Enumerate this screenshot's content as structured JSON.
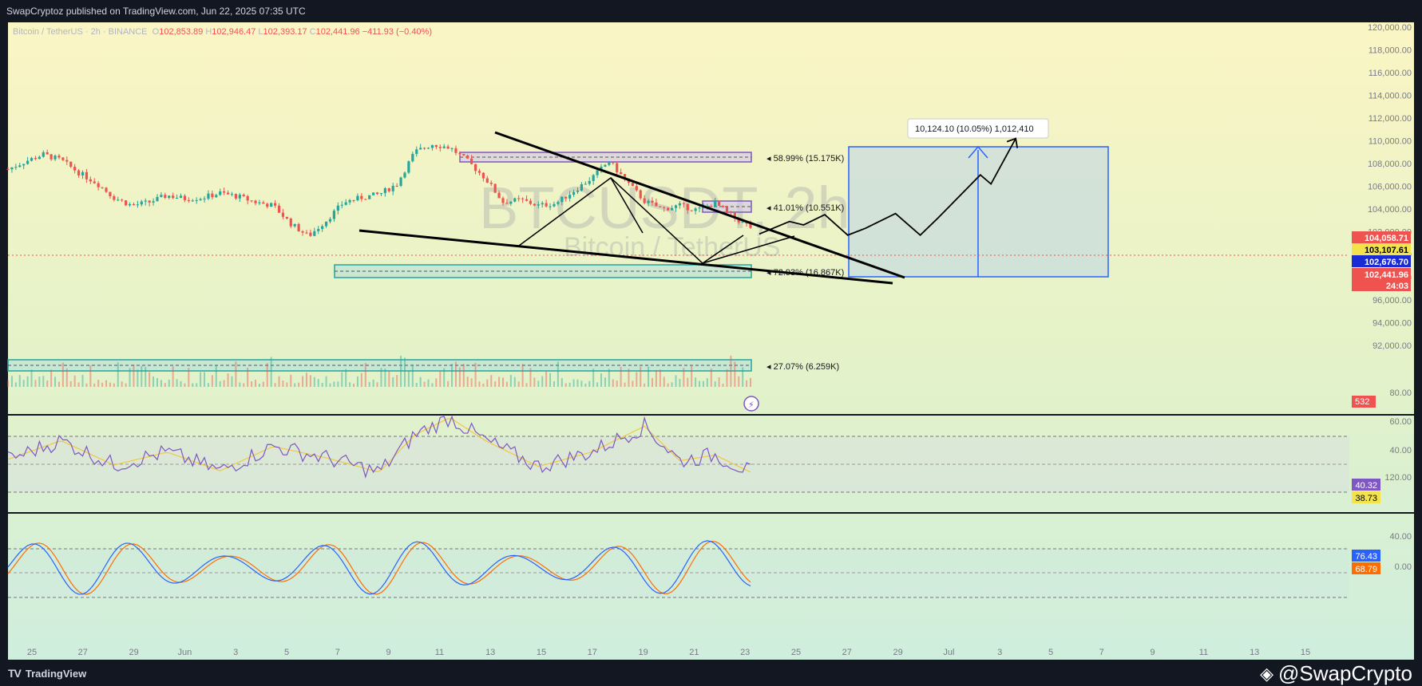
{
  "header": {
    "publisher": "SwapCryptoz published on TradingView.com, Jun 22, 2025 07:35 UTC"
  },
  "legend": {
    "symbol": "Bitcoin / TetherUS · 2h · BINANCE",
    "open_label": "O",
    "open": "102,853.89",
    "high_label": "H",
    "high": "102,946.47",
    "low_label": "L",
    "low": "102,393.17",
    "close_label": "C",
    "close": "102,441.96",
    "change": "−411.93 (−0.40%)"
  },
  "watermark": {
    "symbol": "BTCUSDT, 2h",
    "name": "Bitcoin / TetherUS"
  },
  "footer": {
    "brand": "TradingView",
    "credit": "@SwapCrypto"
  },
  "colors": {
    "bull": "#26a69a",
    "bear": "#ef5350",
    "rsi": "#7e57c2",
    "rsi_ma": "#f2c744",
    "stoch_k": "#2962ff",
    "stoch_d": "#ff6d00",
    "target_box": "#2962ff"
  },
  "annotations": {
    "target_label": "10,124.10 (10.05%) 1,012,410",
    "zone_58": "58.99% (15.175K)",
    "zone_41": "41.01% (10.551K)",
    "zone_72": "72.93% (16.867K)",
    "zone_27": "27.07% (6.259K)"
  },
  "price_tags": [
    {
      "value": "104,058.71",
      "bg": "#ef5350",
      "fg": "#ffffff"
    },
    {
      "value": "103,107.61",
      "bg": "#f2e34c",
      "fg": "#000000"
    },
    {
      "value": "102,676.70",
      "bg": "#1a2bd6",
      "fg": "#ffffff"
    },
    {
      "value": "102,441.96",
      "bg": "#ef5350",
      "fg": "#ffffff"
    },
    {
      "value": "24:03",
      "bg": "#ef5350",
      "fg": "#ffffff"
    }
  ],
  "volume_tag": "532",
  "rsi_tags": [
    {
      "value": "40.32",
      "bg": "#7e57c2",
      "fg": "#ffffff"
    },
    {
      "value": "38.73",
      "bg": "#f2e34c",
      "fg": "#000000"
    }
  ],
  "stoch_tags": [
    {
      "value": "76.43",
      "bg": "#2962ff",
      "fg": "#ffffff"
    },
    {
      "value": "68.79",
      "bg": "#ff6d00",
      "fg": "#ffffff"
    }
  ],
  "chart_data": {
    "type": "candlestick",
    "title": "Bitcoin / TetherUS · 2h · BINANCE",
    "y_axis_ticks": [
      "120,000.00",
      "118,000.00",
      "116,000.00",
      "114,000.00",
      "112,000.00",
      "110,000.00",
      "108,000.00",
      "106,000.00",
      "104,000.00",
      "102,000.00",
      "100,000.00",
      "98,000.00",
      "96,000.00",
      "94,000.00",
      "92,000.00"
    ],
    "ylim": [
      91000,
      120500
    ],
    "x_axis_ticks": [
      "25",
      "27",
      "29",
      "Jun",
      "3",
      "5",
      "7",
      "9",
      "11",
      "13",
      "15",
      "17",
      "19",
      "21",
      "23",
      "25",
      "27",
      "29",
      "Jul",
      "3",
      "5",
      "7",
      "9",
      "11",
      "13",
      "15"
    ],
    "price_path": [
      [
        0,
        107500
      ],
      [
        1,
        108200
      ],
      [
        2,
        108800
      ],
      [
        3,
        108300
      ],
      [
        4,
        107200
      ],
      [
        5,
        106300
      ],
      [
        6,
        105000
      ],
      [
        7,
        104300
      ],
      [
        8,
        104600
      ],
      [
        9,
        105200
      ],
      [
        10,
        104900
      ],
      [
        11,
        105000
      ],
      [
        12,
        105400
      ],
      [
        13,
        105100
      ],
      [
        14,
        104600
      ],
      [
        15,
        104300
      ],
      [
        16,
        102700
      ],
      [
        17,
        101600
      ],
      [
        18,
        103000
      ],
      [
        19,
        104600
      ],
      [
        20,
        105000
      ],
      [
        21,
        105300
      ],
      [
        22,
        106200
      ],
      [
        23,
        109000
      ],
      [
        24,
        109700
      ],
      [
        25,
        109400
      ],
      [
        26,
        108200
      ],
      [
        27,
        106700
      ],
      [
        28,
        104600
      ],
      [
        29,
        104800
      ],
      [
        30,
        104300
      ],
      [
        31,
        104500
      ],
      [
        32,
        105600
      ],
      [
        33,
        106700
      ],
      [
        34,
        108200
      ],
      [
        35,
        106400
      ],
      [
        36,
        104700
      ],
      [
        37,
        104000
      ],
      [
        38,
        104300
      ],
      [
        39,
        103900
      ],
      [
        40,
        104500
      ],
      [
        41,
        103300
      ],
      [
        42,
        102400
      ]
    ],
    "price_path_x_unit": "12-hour steps from May 24",
    "projected_path": [
      [
        42.5,
        101800
      ],
      [
        44.2,
        102900
      ],
      [
        45.0,
        102600
      ],
      [
        46.2,
        103500
      ],
      [
        47.5,
        101700
      ],
      [
        48.5,
        102300
      ],
      [
        50.2,
        103600
      ],
      [
        51.6,
        101700
      ],
      [
        52.6,
        103200
      ],
      [
        55.0,
        107000
      ],
      [
        55.6,
        106200
      ],
      [
        57.0,
        110200
      ]
    ],
    "rsi_ticks": [
      "80.00",
      "60.00",
      "40.00"
    ],
    "rsi_path": [
      [
        0,
        49
      ],
      [
        3,
        62
      ],
      [
        6,
        45
      ],
      [
        9,
        54
      ],
      [
        12,
        41
      ],
      [
        15,
        58
      ],
      [
        18,
        50
      ],
      [
        21,
        40
      ],
      [
        23,
        66
      ],
      [
        25,
        78
      ],
      [
        27,
        62
      ],
      [
        30,
        44
      ],
      [
        33,
        54
      ],
      [
        36,
        72
      ],
      [
        38,
        48
      ],
      [
        40,
        52
      ],
      [
        42,
        40
      ]
    ],
    "rsi_bands": [
      70,
      50,
      30
    ],
    "stoch_ticks": [
      "120.00",
      "40.00",
      "0.00"
    ],
    "stoch_bands": [
      80,
      50,
      20
    ],
    "target_box": {
      "low": 101400,
      "high": 111200,
      "move": "10,124.10 (10.05%)"
    }
  }
}
